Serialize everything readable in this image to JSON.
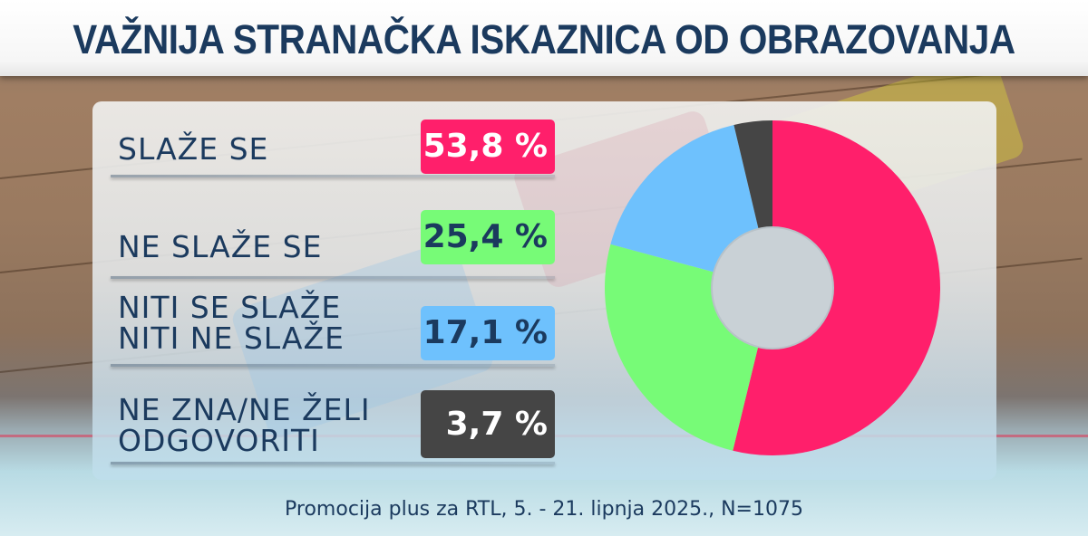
{
  "title": "VAŽNIJA STRANAČKA ISKAZNICA OD OBRAZOVANJA",
  "rows": [
    {
      "label": "SLAŽE SE",
      "value_text": "53,8 %",
      "color": "#ff1f6b",
      "text_color": "#ffffff"
    },
    {
      "label": "NE SLAŽE SE",
      "value_text": "25,4 %",
      "color": "#77fb77",
      "text_color": "#1b3a5e"
    },
    {
      "label": "NITI SE SLAŽE\nNITI NE SLAŽE",
      "value_text": "17,1 %",
      "color": "#6ec1fd",
      "text_color": "#1b3a5e"
    },
    {
      "label": "NE ZNA/NE ŽELI\nODGOVORITI",
      "value_text": "3,7 %",
      "color": "#454545",
      "text_color": "#ffffff"
    }
  ],
  "footer": "Promocija plus za RTL, 5. - 21. lipnja 2025., N=1075",
  "chart_data": {
    "type": "pie",
    "donut": true,
    "title": "VAŽNIJA STRANAČKA ISKAZNICA OD OBRAZOVANJA",
    "categories": [
      "SLAŽE SE",
      "NE SLAŽE SE",
      "NITI SE SLAŽE NITI NE SLAŽE",
      "NE ZNA/NE ŽELI ODGOVORITI"
    ],
    "values": [
      53.8,
      25.4,
      17.1,
      3.7
    ],
    "colors": [
      "#ff1f6b",
      "#77fb77",
      "#6ec1fd",
      "#454545"
    ],
    "start_angle": "12 o'clock, clockwise",
    "source": "Promocija plus za RTL, 5. - 21. lipnja 2025., N=1075"
  }
}
